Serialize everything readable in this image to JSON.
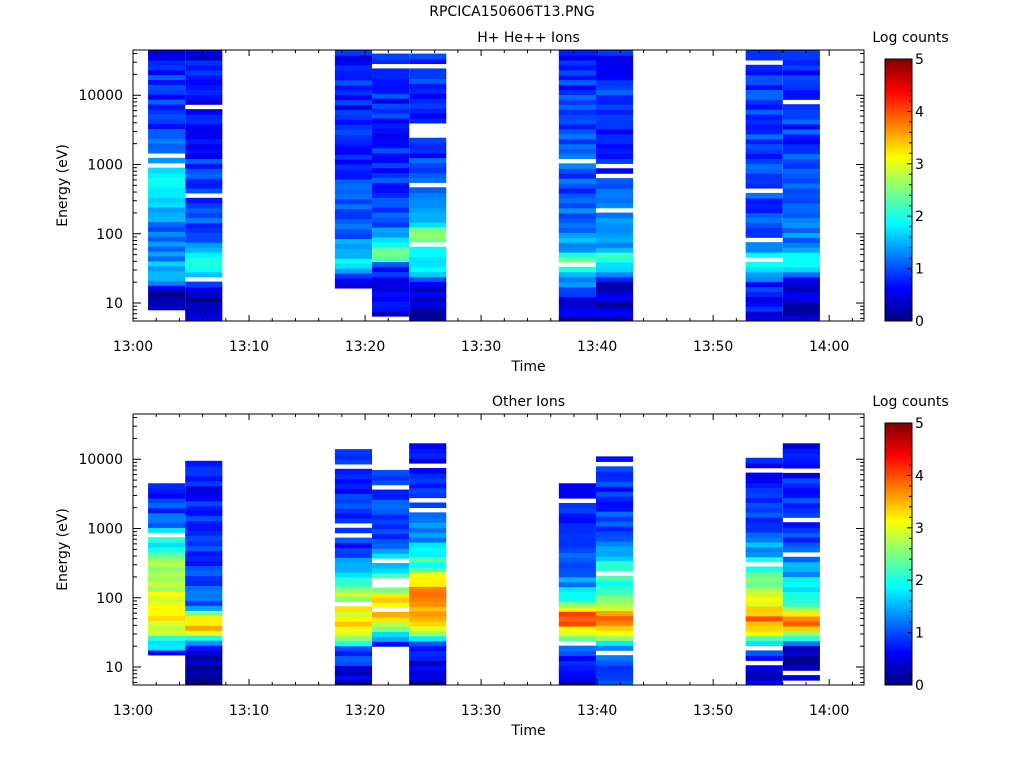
{
  "figure_title": "RPCICA150606T13.PNG",
  "colors": {
    "colormap": [
      "#00007f",
      "#0000ff",
      "#007fff",
      "#00ffff",
      "#7fff7f",
      "#ffff00",
      "#ff7f00",
      "#ff0000",
      "#7f0000"
    ],
    "background": "#ffffff",
    "axis": "#000000"
  },
  "chart_data": [
    {
      "type": "heatmap",
      "title": "H+ He++ Ions",
      "xlabel": "Time",
      "ylabel": "Energy (eV)",
      "colorbar_label": "Log counts",
      "colorbar_ticks": [
        "0",
        "1",
        "2",
        "3",
        "4",
        "5"
      ],
      "clim": [
        0,
        5
      ],
      "x_ticks": [
        "13:00",
        "13:10",
        "13:20",
        "13:30",
        "13:40",
        "13:50",
        "14:00"
      ],
      "xlim_minutes": [
        0,
        63
      ],
      "y_scale": "log",
      "ylim": [
        5.5,
        45000
      ],
      "y_ticks": [
        "10",
        "100",
        "1000",
        "10000"
      ],
      "columns": [
        {
          "start": "13:01.3",
          "end": "13:04.5",
          "emin": 8,
          "emax": 45000,
          "profile": [
            [
              8,
              0.3
            ],
            [
              15,
              0.0
            ],
            [
              20,
              1.2
            ],
            [
              30,
              1.6
            ],
            [
              50,
              1.3
            ],
            [
              80,
              1.1
            ],
            [
              150,
              1.2
            ],
            [
              300,
              1.6
            ],
            [
              700,
              1.9
            ],
            [
              2000,
              1.1
            ],
            [
              5000,
              0.9
            ],
            [
              20000,
              0.8
            ],
            [
              45000,
              0.7
            ]
          ]
        },
        {
          "start": "13:04.5",
          "end": "13:07.7",
          "emin": 5.5,
          "emax": 45000,
          "profile": [
            [
              5.5,
              0.6
            ],
            [
              15,
              0.2
            ],
            [
              25,
              1.7
            ],
            [
              40,
              2.0
            ],
            [
              80,
              1.1
            ],
            [
              200,
              0.9
            ],
            [
              600,
              1.0
            ],
            [
              2000,
              0.7
            ],
            [
              10000,
              0.7
            ],
            [
              45000,
              0.6
            ]
          ]
        },
        {
          "start": "13:17.4",
          "end": "13:20.6",
          "emin": 14,
          "emax": 45000,
          "profile": [
            [
              14,
              0.2
            ],
            [
              25,
              1.0
            ],
            [
              40,
              1.8
            ],
            [
              60,
              1.4
            ],
            [
              120,
              1.1
            ],
            [
              400,
              1.0
            ],
            [
              1500,
              0.8
            ],
            [
              5000,
              0.8
            ],
            [
              45000,
              0.7
            ]
          ]
        },
        {
          "start": "13:20.6",
          "end": "13:23.8",
          "emin": 5.5,
          "emax": 40000,
          "profile": [
            [
              5.5,
              0.6
            ],
            [
              20,
              0.3
            ],
            [
              35,
              1.1
            ],
            [
              50,
              2.5
            ],
            [
              80,
              1.6
            ],
            [
              150,
              1.1
            ],
            [
              500,
              0.9
            ],
            [
              3000,
              0.8
            ],
            [
              40000,
              0.8
            ]
          ]
        },
        {
          "start": "13:23.8",
          "end": "13:27.0",
          "emin": 5.5,
          "emax": 40000,
          "profile": [
            [
              5.5,
              0.3
            ],
            [
              20,
              0.4
            ],
            [
              30,
              1.8
            ],
            [
              50,
              2.0
            ],
            [
              100,
              2.4
            ],
            [
              200,
              1.3
            ],
            [
              600,
              0.9
            ],
            [
              3000,
              0.9
            ],
            [
              40000,
              0.8
            ]
          ]
        },
        {
          "start": "13:36.7",
          "end": "13:39.9",
          "emin": 5.5,
          "emax": 45000,
          "profile": [
            [
              5.5,
              0.3
            ],
            [
              15,
              0.8
            ],
            [
              25,
              1.6
            ],
            [
              40,
              2.3
            ],
            [
              60,
              1.5
            ],
            [
              150,
              1.1
            ],
            [
              800,
              1.0
            ],
            [
              5000,
              0.9
            ],
            [
              45000,
              0.8
            ]
          ]
        },
        {
          "start": "13:39.9",
          "end": "13:43.1",
          "emin": 5.5,
          "emax": 45000,
          "profile": [
            [
              5.5,
              0.4
            ],
            [
              20,
              0.3
            ],
            [
              30,
              1.4
            ],
            [
              45,
              2.1
            ],
            [
              80,
              1.3
            ],
            [
              300,
              1.0
            ],
            [
              1500,
              0.9
            ],
            [
              10000,
              0.9
            ],
            [
              45000,
              0.8
            ]
          ]
        },
        {
          "start": "13:52.8",
          "end": "13:56.0",
          "emin": 5.5,
          "emax": 45000,
          "profile": [
            [
              5.5,
              0.5
            ],
            [
              20,
              0.9
            ],
            [
              30,
              1.6
            ],
            [
              45,
              2.0
            ],
            [
              70,
              1.3
            ],
            [
              150,
              1.0
            ],
            [
              700,
              0.9
            ],
            [
              5000,
              0.9
            ],
            [
              45000,
              0.8
            ]
          ]
        },
        {
          "start": "13:56.0",
          "end": "13:59.2",
          "emin": 5.5,
          "emax": 45000,
          "profile": [
            [
              5.5,
              0.3
            ],
            [
              20,
              0.6
            ],
            [
              30,
              1.5
            ],
            [
              45,
              2.2
            ],
            [
              70,
              1.4
            ],
            [
              150,
              1.0
            ],
            [
              800,
              0.9
            ],
            [
              5000,
              0.9
            ],
            [
              45000,
              0.8
            ]
          ]
        }
      ]
    },
    {
      "type": "heatmap",
      "title": "Other Ions",
      "xlabel": "Time",
      "ylabel": "Energy (eV)",
      "colorbar_label": "Log counts",
      "colorbar_ticks": [
        "0",
        "1",
        "2",
        "3",
        "4",
        "5"
      ],
      "clim": [
        0,
        5
      ],
      "x_ticks": [
        "13:00",
        "13:10",
        "13:20",
        "13:30",
        "13:40",
        "13:50",
        "14:00"
      ],
      "xlim_minutes": [
        0,
        63
      ],
      "y_scale": "log",
      "ylim": [
        5.5,
        45000
      ],
      "y_ticks": [
        "10",
        "100",
        "1000",
        "10000"
      ],
      "columns": [
        {
          "start": "13:01.3",
          "end": "13:04.5",
          "emin": 15,
          "emax": 4500,
          "profile": [
            [
              15,
              0.4
            ],
            [
              20,
              1.8
            ],
            [
              30,
              2.6
            ],
            [
              50,
              3.2
            ],
            [
              100,
              2.9
            ],
            [
              300,
              2.6
            ],
            [
              800,
              1.7
            ],
            [
              1500,
              1.0
            ],
            [
              4500,
              0.7
            ]
          ]
        },
        {
          "start": "13:04.5",
          "end": "13:07.7",
          "emin": 5.5,
          "emax": 9500,
          "profile": [
            [
              5.5,
              0.2
            ],
            [
              15,
              0.5
            ],
            [
              25,
              1.5
            ],
            [
              35,
              3.6
            ],
            [
              55,
              3.0
            ],
            [
              80,
              1.0
            ],
            [
              200,
              0.9
            ],
            [
              700,
              0.8
            ],
            [
              3000,
              0.7
            ],
            [
              9500,
              0.6
            ]
          ]
        },
        {
          "start": "13:17.4",
          "end": "13:20.6",
          "emin": 5.5,
          "emax": 14000,
          "profile": [
            [
              5.5,
              0.2
            ],
            [
              20,
              1.2
            ],
            [
              30,
              3.2
            ],
            [
              45,
              3.5
            ],
            [
              70,
              3.0
            ],
            [
              150,
              2.3
            ],
            [
              300,
              1.5
            ],
            [
              500,
              0.9
            ],
            [
              14000,
              0.7
            ]
          ]
        },
        {
          "start": "13:20.6",
          "end": "13:23.8",
          "emin": 20,
          "emax": 7000,
          "profile": [
            [
              20,
              0.7
            ],
            [
              30,
              1.5
            ],
            [
              45,
              3.4
            ],
            [
              60,
              3.8
            ],
            [
              100,
              3.1
            ],
            [
              200,
              2.2
            ],
            [
              600,
              1.1
            ],
            [
              7000,
              0.8
            ]
          ]
        },
        {
          "start": "13:23.8",
          "end": "13:27.0",
          "emin": 5.5,
          "emax": 17000,
          "profile": [
            [
              5.5,
              0.2
            ],
            [
              20,
              0.6
            ],
            [
              30,
              2.8
            ],
            [
              60,
              3.6
            ],
            [
              120,
              3.9
            ],
            [
              300,
              2.2
            ],
            [
              700,
              1.4
            ],
            [
              2000,
              0.8
            ],
            [
              17000,
              0.6
            ]
          ]
        },
        {
          "start": "13:36.7",
          "end": "13:39.9",
          "emin": 5.5,
          "emax": 4500,
          "profile": [
            [
              5.5,
              0.3
            ],
            [
              20,
              0.9
            ],
            [
              30,
              3.0
            ],
            [
              45,
              3.9
            ],
            [
              60,
              4.1
            ],
            [
              100,
              1.9
            ],
            [
              250,
              0.9
            ],
            [
              4500,
              0.7
            ]
          ]
        },
        {
          "start": "13:39.9",
          "end": "13:43.1",
          "emin": 5.5,
          "emax": 11000,
          "profile": [
            [
              5.5,
              0.9
            ],
            [
              20,
              1.1
            ],
            [
              30,
              3.2
            ],
            [
              45,
              3.9
            ],
            [
              70,
              3.0
            ],
            [
              150,
              2.1
            ],
            [
              400,
              1.7
            ],
            [
              1000,
              1.0
            ],
            [
              11000,
              0.7
            ]
          ]
        },
        {
          "start": "13:52.8",
          "end": "13:56.0",
          "emin": 5.5,
          "emax": 10500,
          "profile": [
            [
              5.5,
              0.3
            ],
            [
              20,
              1.1
            ],
            [
              30,
              2.9
            ],
            [
              50,
              3.8
            ],
            [
              80,
              3.1
            ],
            [
              200,
              2.3
            ],
            [
              600,
              1.3
            ],
            [
              2000,
              0.8
            ],
            [
              10500,
              0.7
            ]
          ]
        },
        {
          "start": "13:56.0",
          "end": "13:59.2",
          "emin": 5.5,
          "emax": 17000,
          "profile": [
            [
              5.5,
              0.2
            ],
            [
              20,
              0.5
            ],
            [
              30,
              2.7
            ],
            [
              45,
              3.8
            ],
            [
              70,
              2.4
            ],
            [
              200,
              1.5
            ],
            [
              600,
              1.0
            ],
            [
              2000,
              0.8
            ],
            [
              17000,
              0.7
            ]
          ]
        }
      ]
    }
  ]
}
